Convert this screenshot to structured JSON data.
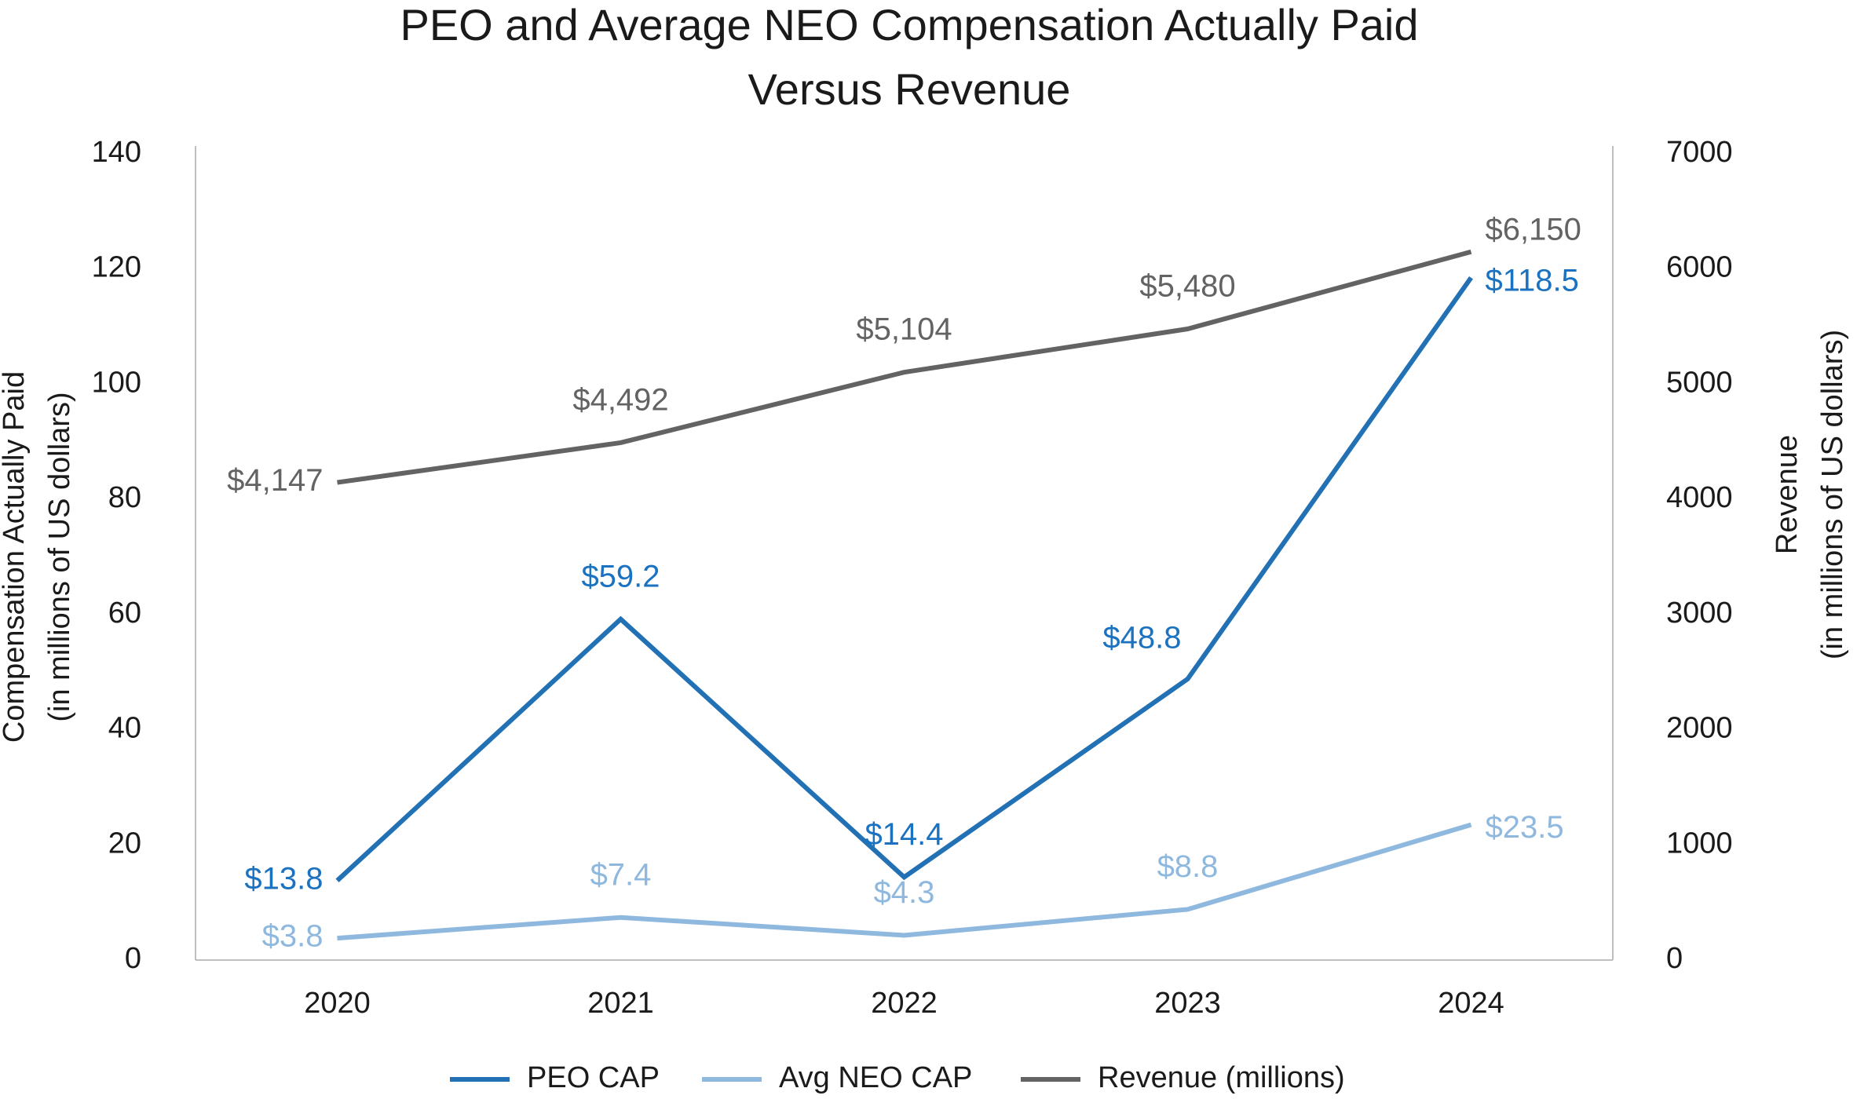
{
  "chart_data": {
    "type": "line",
    "title": [
      "PEO and Average NEO Compensation Actually Paid",
      "Versus Revenue"
    ],
    "y_label": [
      "Compensation Actually Paid",
      "(in millions of US dollars)"
    ],
    "y2_label": [
      "Revenue",
      "(in millions of US dollars)"
    ],
    "categories": [
      "2020",
      "2021",
      "2022",
      "2023",
      "2024"
    ],
    "ylim": [
      0,
      140
    ],
    "yticks": [
      0,
      20,
      40,
      60,
      80,
      100,
      120,
      140
    ],
    "y2lim": [
      0,
      7000
    ],
    "y2ticks": [
      0,
      1000,
      2000,
      3000,
      4000,
      5000,
      6000,
      7000
    ],
    "grid": false,
    "legend": "bottom",
    "series": [
      {
        "name": "PEO CAP",
        "color": "#2271b5",
        "label_color": "#1a72c0",
        "values": [
          13.8,
          59.2,
          14.4,
          48.8,
          118.5
        ],
        "value_labels": [
          "$13.8",
          "$59.2",
          "$14.4",
          "$48.8",
          "$118.5"
        ]
      },
      {
        "name": "Avg NEO CAP",
        "color": "#8fb8de",
        "label_color": "#8fb8de",
        "values": [
          3.8,
          7.4,
          4.3,
          8.8,
          23.5
        ],
        "value_labels": [
          "$3.8",
          "$7.4",
          "$4.3",
          "$8.8",
          "$23.5"
        ]
      },
      {
        "name": "Revenue (millions)",
        "color": "#636363",
        "label_color": "#636363",
        "axis": "y2",
        "values": [
          4147,
          4492,
          5104,
          5480,
          6150
        ],
        "value_labels": [
          "$4,147",
          "$4,492",
          "$5,104",
          "$5,480",
          "$6,150"
        ]
      }
    ]
  }
}
